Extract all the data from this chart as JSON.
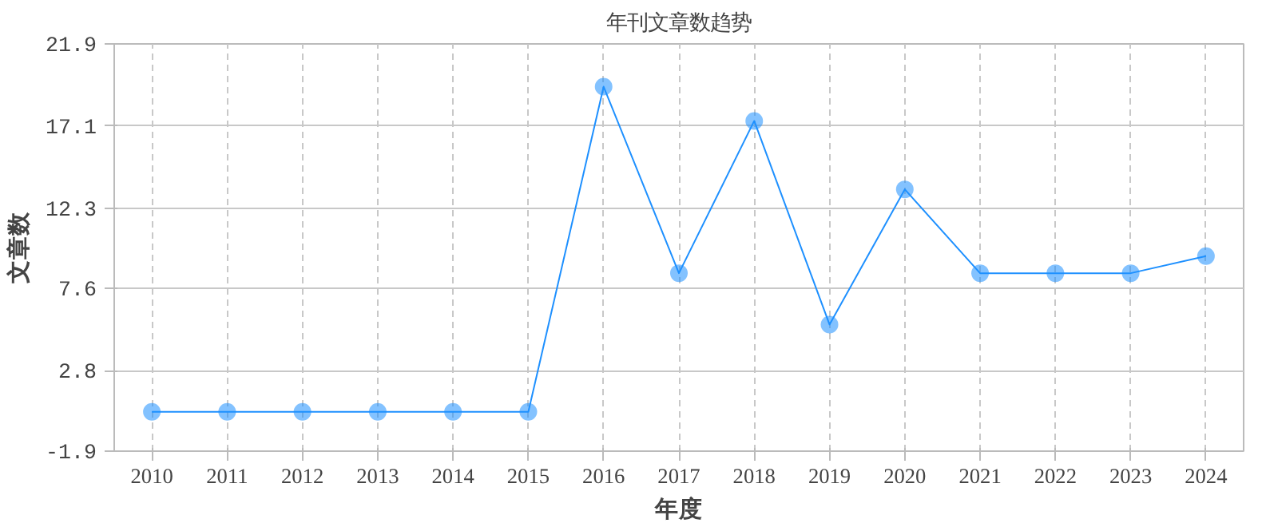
{
  "chart_data": {
    "type": "line",
    "title": "年刊文章数趋势",
    "xlabel": "年度",
    "ylabel": "文章数",
    "categories": [
      "2010",
      "2011",
      "2012",
      "2013",
      "2014",
      "2015",
      "2016",
      "2017",
      "2018",
      "2019",
      "2020",
      "2021",
      "2022",
      "2023",
      "2024"
    ],
    "series": [
      {
        "color": "#1e90ff",
        "values": [
          0.4,
          0.4,
          0.4,
          0.4,
          0.4,
          0.4,
          19.4,
          8.5,
          17.4,
          5.5,
          13.4,
          8.5,
          8.5,
          8.5,
          9.5
        ]
      }
    ],
    "ylim": [
      -1.9,
      21.9
    ],
    "yticks": [
      -1.9,
      2.8,
      7.6,
      12.3,
      17.1,
      21.9
    ],
    "grid": true,
    "marker": "circle",
    "line_style": "solid"
  }
}
